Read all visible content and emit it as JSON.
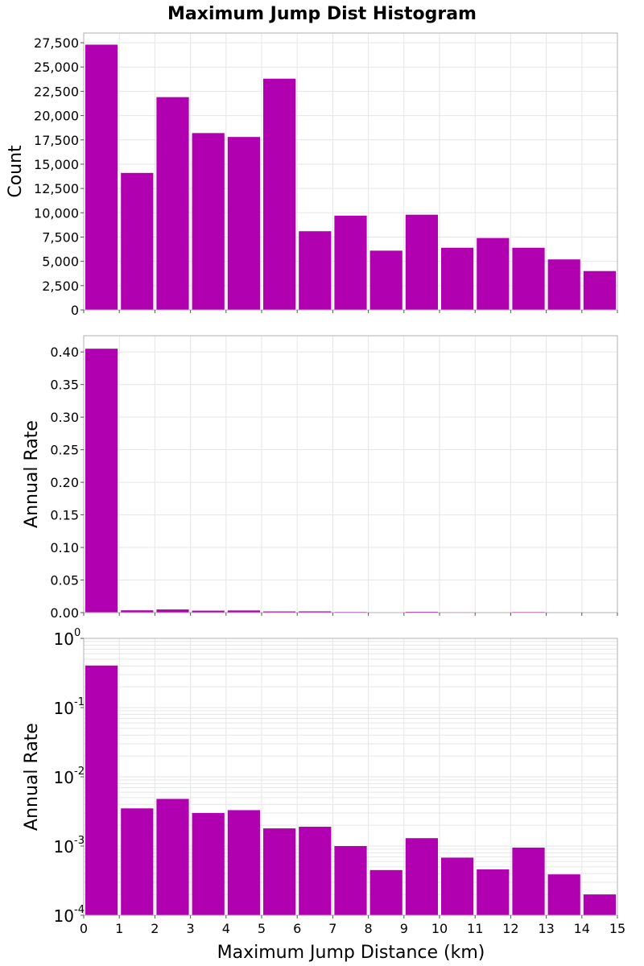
{
  "figure": {
    "title": "Maximum Jump Dist Histogram",
    "xlabel": "Maximum Jump Distance (km)"
  },
  "colors": {
    "bar": "#b000b0",
    "grid": "#e6e6e6",
    "frame": "#b0b0b0"
  },
  "chart_data": [
    {
      "type": "bar",
      "title": "Maximum Jump Dist Histogram",
      "ylabel": "Count",
      "x": [
        0.5,
        1.5,
        2.5,
        3.5,
        4.5,
        5.5,
        6.5,
        7.5,
        8.5,
        9.5,
        10.5,
        11.5,
        12.5,
        13.5,
        14.5
      ],
      "values": [
        27300,
        14100,
        21900,
        18200,
        17800,
        23800,
        8100,
        9700,
        6100,
        9800,
        6400,
        7400,
        6400,
        5200,
        4000
      ],
      "xlim": [
        0,
        15
      ],
      "ylim": [
        0,
        28500
      ],
      "yticks": [
        0,
        2500,
        5000,
        7500,
        10000,
        12500,
        15000,
        17500,
        20000,
        22500,
        25000,
        27500
      ],
      "ytick_labels": [
        "0",
        "2,500",
        "5,000",
        "7,500",
        "10,000",
        "12,500",
        "15,000",
        "17,500",
        "20,000",
        "22,500",
        "25,000",
        "27,500"
      ],
      "grid": true
    },
    {
      "type": "bar",
      "ylabel": "Annual Rate",
      "x": [
        0.5,
        1.5,
        2.5,
        3.5,
        4.5,
        5.5,
        6.5,
        7.5,
        8.5,
        9.5,
        10.5,
        11.5,
        12.5,
        13.5,
        14.5
      ],
      "values": [
        0.405,
        0.0035,
        0.0048,
        0.003,
        0.0033,
        0.0018,
        0.0019,
        0.001,
        0.00045,
        0.0013,
        0.00068,
        0.00046,
        0.00095,
        0.00039,
        0.0002
      ],
      "xlim": [
        0,
        15
      ],
      "ylim": [
        0,
        0.425
      ],
      "yticks": [
        0,
        0.05,
        0.1,
        0.15,
        0.2,
        0.25,
        0.3,
        0.35,
        0.4
      ],
      "ytick_labels": [
        "0.00",
        "0.05",
        "0.10",
        "0.15",
        "0.20",
        "0.25",
        "0.30",
        "0.35",
        "0.40"
      ],
      "grid": true
    },
    {
      "type": "bar",
      "ylabel": "Annual Rate",
      "yscale": "log",
      "x": [
        0.5,
        1.5,
        2.5,
        3.5,
        4.5,
        5.5,
        6.5,
        7.5,
        8.5,
        9.5,
        10.5,
        11.5,
        12.5,
        13.5,
        14.5
      ],
      "values": [
        0.405,
        0.0035,
        0.0048,
        0.003,
        0.0033,
        0.0018,
        0.0019,
        0.001,
        0.00045,
        0.0013,
        0.00068,
        0.00046,
        0.00095,
        0.00039,
        0.0002
      ],
      "xlim": [
        0,
        15
      ],
      "ylim": [
        0.0001,
        1
      ],
      "yticks": [
        0.0001,
        0.001,
        0.01,
        0.1,
        1
      ],
      "ytick_labels": [
        {
          "base": "10",
          "exp": "-4"
        },
        {
          "base": "10",
          "exp": "-3"
        },
        {
          "base": "10",
          "exp": "-2"
        },
        {
          "base": "10",
          "exp": "-1"
        },
        {
          "base": "10",
          "exp": "0"
        }
      ],
      "xticks": [
        0,
        1,
        2,
        3,
        4,
        5,
        6,
        7,
        8,
        9,
        10,
        11,
        12,
        13,
        14,
        15
      ],
      "xtick_labels": [
        "0",
        "1",
        "2",
        "3",
        "4",
        "5",
        "6",
        "7",
        "8",
        "9",
        "10",
        "11",
        "12",
        "13",
        "14",
        "15"
      ],
      "xlabel": "Maximum Jump Distance (km)",
      "grid": true
    }
  ]
}
